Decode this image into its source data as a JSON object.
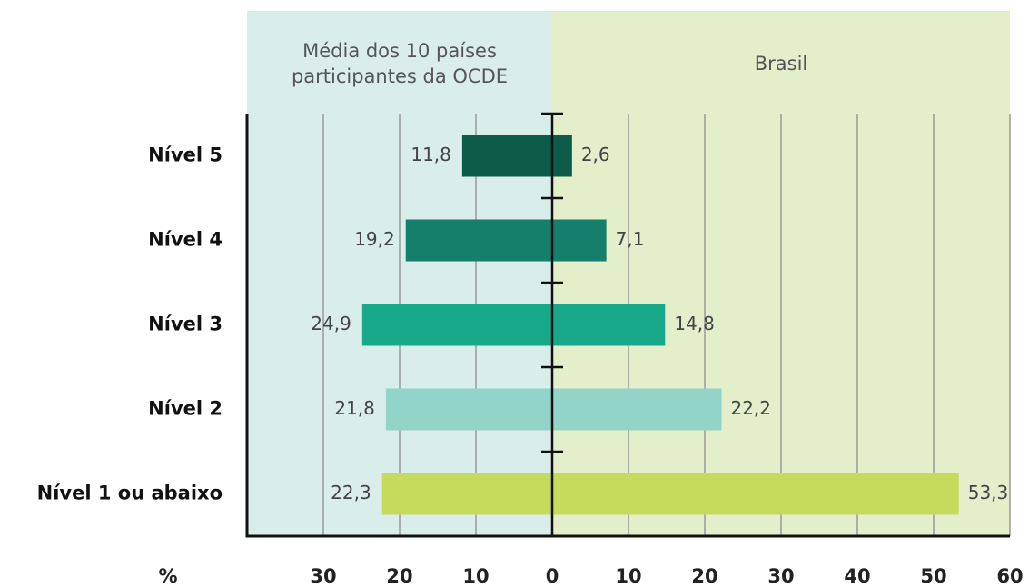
{
  "chart_data": {
    "type": "butterfly",
    "categories": [
      "Nível 5",
      "Nível 4",
      "Nível 3",
      "Nível 2",
      "Nível 1 ou abaixo"
    ],
    "colors": [
      "#0d5c49",
      "#167f6b",
      "#18a98b",
      "#93d4c8",
      "#c6db5c"
    ],
    "series": [
      {
        "name": "Média dos 10 países participantes da OCDE",
        "side": "left",
        "panel_color": "#d9eeea",
        "values": [
          11.8,
          19.2,
          24.9,
          21.8,
          22.3
        ],
        "value_labels": [
          "11,8",
          "19,2",
          "24,9",
          "21,8",
          "22,3"
        ]
      },
      {
        "name": "Brasil",
        "side": "right",
        "panel_color": "#e3eecb",
        "values": [
          2.6,
          7.1,
          14.8,
          22.2,
          53.3
        ],
        "value_labels": [
          "2,6",
          "7,1",
          "14,8",
          "22,2",
          "53,3"
        ]
      }
    ],
    "xlabel": "%",
    "xlim": [
      -40,
      60
    ],
    "xticks": [
      {
        "value": -30,
        "label": "30"
      },
      {
        "value": -20,
        "label": "20"
      },
      {
        "value": -10,
        "label": "10"
      },
      0,
      10,
      20,
      30,
      40,
      50,
      60
    ],
    "grid": true
  }
}
